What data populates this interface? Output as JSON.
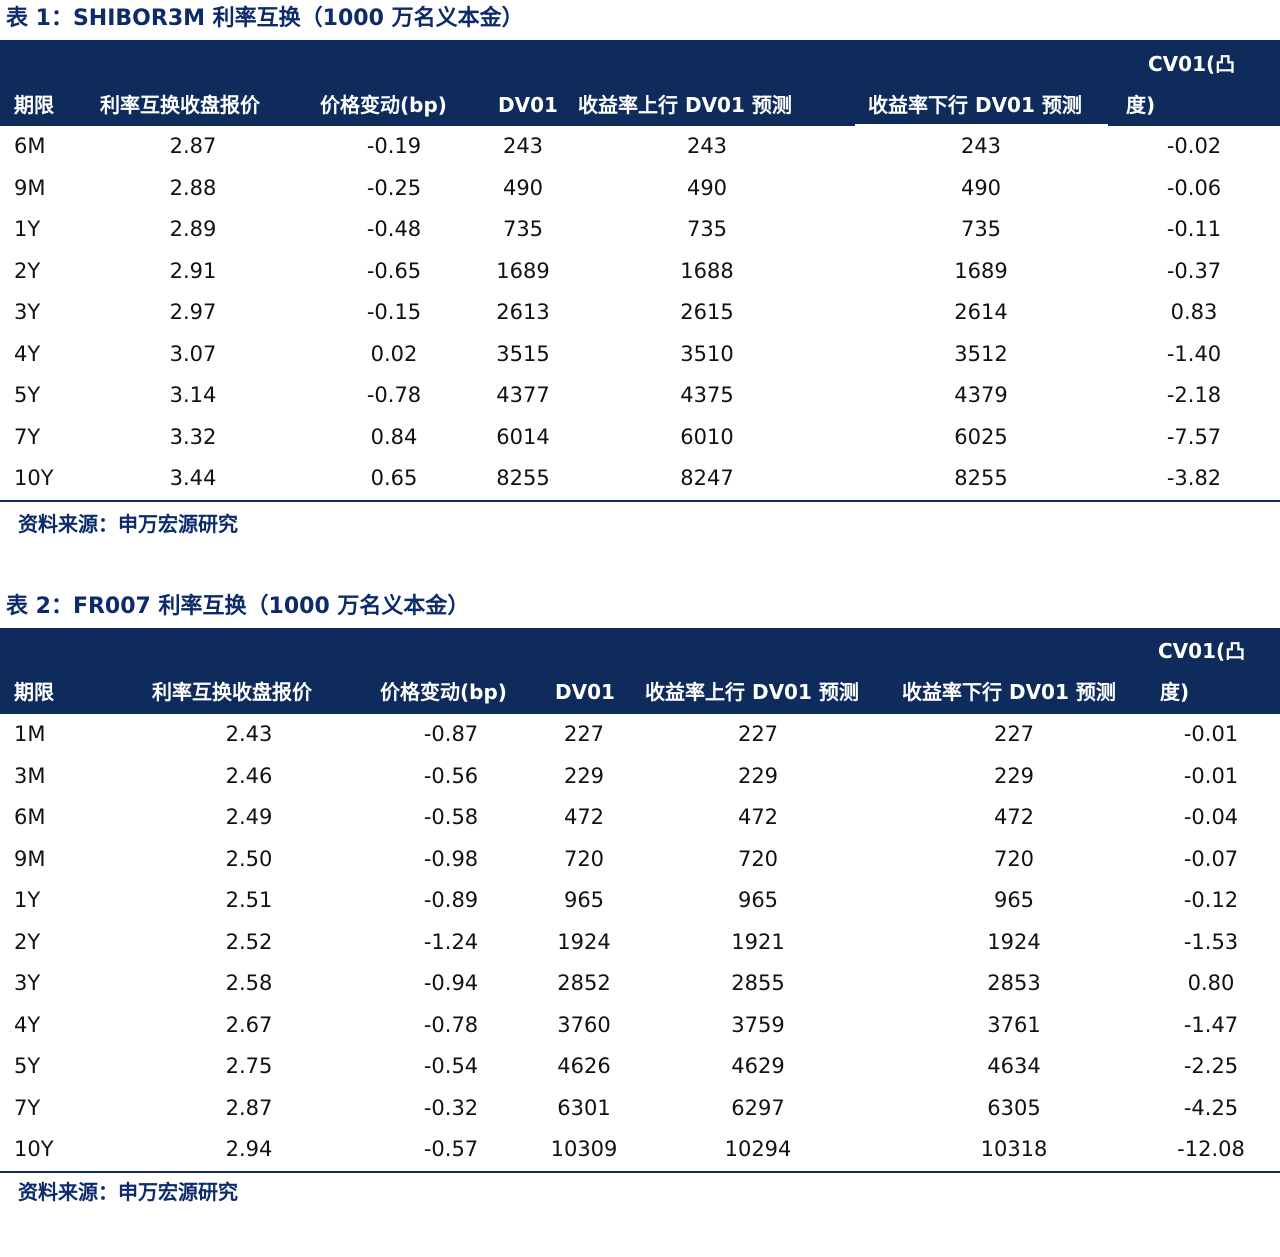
{
  "tables": [
    {
      "title": "表 1：SHIBOR3M 利率互换（1000 万名义本金）",
      "headers": {
        "term": "期限",
        "quote": "利率互换收盘报价",
        "change": "价格变动(bp)",
        "dv01": "DV01",
        "dv01_up": "收益率上行 DV01 预测",
        "dv01_down": "收益率下行 DV01 预测",
        "cv01_line1": "CV01(凸",
        "cv01_line2": "度)"
      },
      "rows": [
        {
          "term": "6M",
          "quote": "2.87",
          "change": "-0.19",
          "dv01": "243",
          "dv01_up": "243",
          "dv01_down": "243",
          "cv01": "-0.02"
        },
        {
          "term": "9M",
          "quote": "2.88",
          "change": "-0.25",
          "dv01": "490",
          "dv01_up": "490",
          "dv01_down": "490",
          "cv01": "-0.06"
        },
        {
          "term": "1Y",
          "quote": "2.89",
          "change": "-0.48",
          "dv01": "735",
          "dv01_up": "735",
          "dv01_down": "735",
          "cv01": "-0.11"
        },
        {
          "term": "2Y",
          "quote": "2.91",
          "change": "-0.65",
          "dv01": "1689",
          "dv01_up": "1688",
          "dv01_down": "1689",
          "cv01": "-0.37"
        },
        {
          "term": "3Y",
          "quote": "2.97",
          "change": "-0.15",
          "dv01": "2613",
          "dv01_up": "2615",
          "dv01_down": "2614",
          "cv01": "0.83"
        },
        {
          "term": "4Y",
          "quote": "3.07",
          "change": "0.02",
          "dv01": "3515",
          "dv01_up": "3510",
          "dv01_down": "3512",
          "cv01": "-1.40"
        },
        {
          "term": "5Y",
          "quote": "3.14",
          "change": "-0.78",
          "dv01": "4377",
          "dv01_up": "4375",
          "dv01_down": "4379",
          "cv01": "-2.18"
        },
        {
          "term": "7Y",
          "quote": "3.32",
          "change": "0.84",
          "dv01": "6014",
          "dv01_up": "6010",
          "dv01_down": "6025",
          "cv01": "-7.57"
        },
        {
          "term": "10Y",
          "quote": "3.44",
          "change": "0.65",
          "dv01": "8255",
          "dv01_up": "8247",
          "dv01_down": "8255",
          "cv01": "-3.82"
        }
      ],
      "source": "资料来源：申万宏源研究"
    },
    {
      "title": "表 2：FR007 利率互换（1000 万名义本金）",
      "headers": {
        "term": "期限",
        "quote": "利率互换收盘报价",
        "change": "价格变动(bp)",
        "dv01": "DV01",
        "dv01_up": "收益率上行 DV01 预测",
        "dv01_down": "收益率下行 DV01 预测",
        "cv01_line1": "CV01(凸",
        "cv01_line2": "度)"
      },
      "rows": [
        {
          "term": "1M",
          "quote": "2.43",
          "change": "-0.87",
          "dv01": "227",
          "dv01_up": "227",
          "dv01_down": "227",
          "cv01": "-0.01"
        },
        {
          "term": "3M",
          "quote": "2.46",
          "change": "-0.56",
          "dv01": "229",
          "dv01_up": "229",
          "dv01_down": "229",
          "cv01": "-0.01"
        },
        {
          "term": "6M",
          "quote": "2.49",
          "change": "-0.58",
          "dv01": "472",
          "dv01_up": "472",
          "dv01_down": "472",
          "cv01": "-0.04"
        },
        {
          "term": "9M",
          "quote": "2.50",
          "change": "-0.98",
          "dv01": "720",
          "dv01_up": "720",
          "dv01_down": "720",
          "cv01": "-0.07"
        },
        {
          "term": "1Y",
          "quote": "2.51",
          "change": "-0.89",
          "dv01": "965",
          "dv01_up": "965",
          "dv01_down": "965",
          "cv01": "-0.12"
        },
        {
          "term": "2Y",
          "quote": "2.52",
          "change": "-1.24",
          "dv01": "1924",
          "dv01_up": "1921",
          "dv01_down": "1924",
          "cv01": "-1.53"
        },
        {
          "term": "3Y",
          "quote": "2.58",
          "change": "-0.94",
          "dv01": "2852",
          "dv01_up": "2855",
          "dv01_down": "2853",
          "cv01": "0.80"
        },
        {
          "term": "4Y",
          "quote": "2.67",
          "change": "-0.78",
          "dv01": "3760",
          "dv01_up": "3759",
          "dv01_down": "3761",
          "cv01": "-1.47"
        },
        {
          "term": "5Y",
          "quote": "2.75",
          "change": "-0.54",
          "dv01": "4626",
          "dv01_up": "4629",
          "dv01_down": "4634",
          "cv01": "-2.25"
        },
        {
          "term": "7Y",
          "quote": "2.87",
          "change": "-0.32",
          "dv01": "6301",
          "dv01_up": "6297",
          "dv01_down": "6305",
          "cv01": "-4.25"
        },
        {
          "term": "10Y",
          "quote": "2.94",
          "change": "-0.57",
          "dv01": "10309",
          "dv01_up": "10294",
          "dv01_down": "10318",
          "cv01": "-12.08"
        }
      ],
      "source": "资料来源：申万宏源研究"
    }
  ]
}
